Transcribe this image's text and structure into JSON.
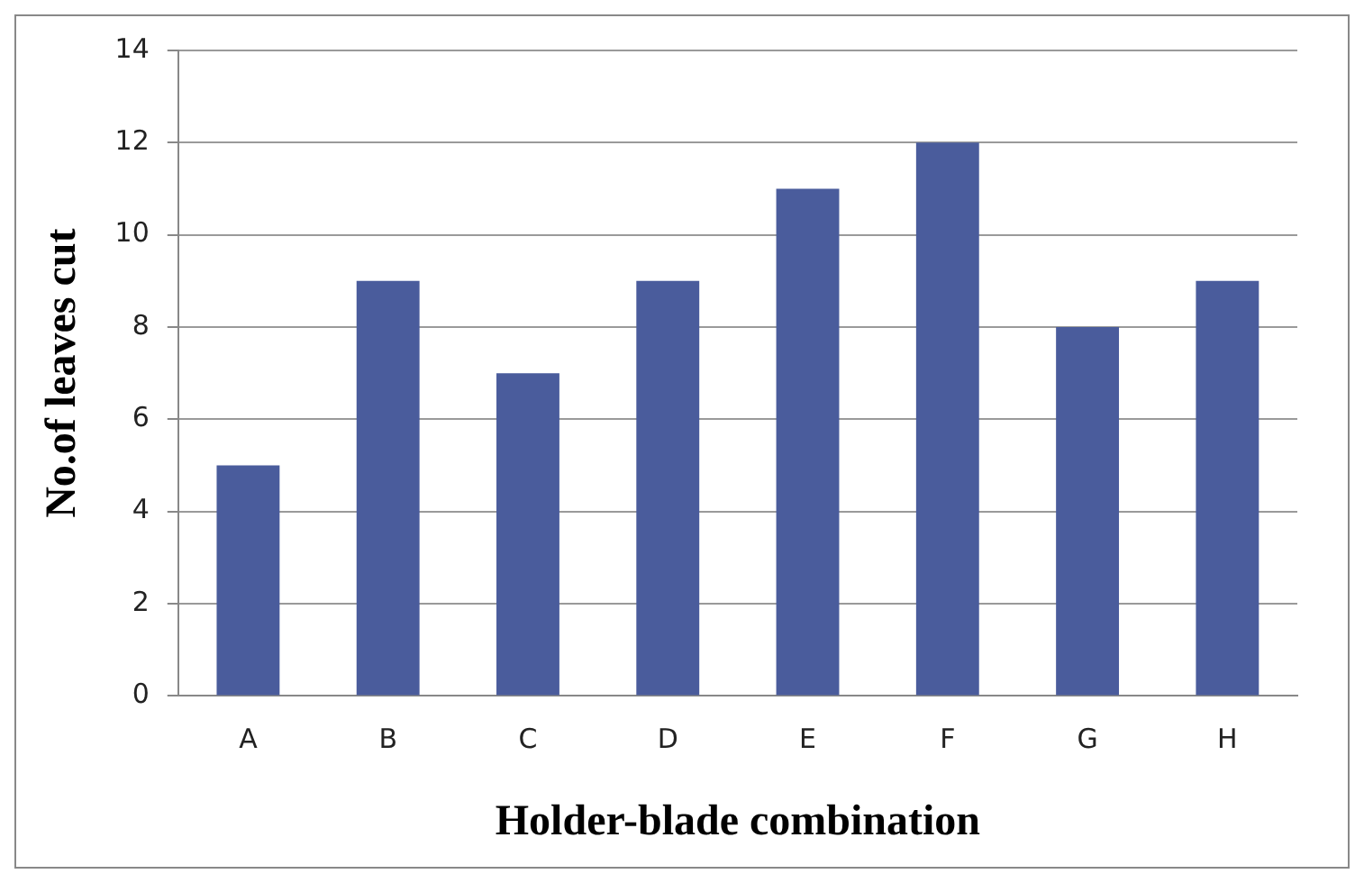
{
  "chart_data": {
    "type": "bar",
    "xlabel": "Holder-blade combination",
    "ylabel": "No.of leaves cut",
    "categories": [
      "A",
      "B",
      "C",
      "D",
      "E",
      "F",
      "G",
      "H"
    ],
    "values": [
      5,
      9,
      7,
      9,
      11,
      12,
      8,
      9
    ],
    "color": "#4a5c9c",
    "ylim": [
      0,
      14
    ],
    "yticks": [
      0,
      2,
      4,
      6,
      8,
      10,
      12,
      14
    ],
    "grid": "y",
    "legend": false
  }
}
